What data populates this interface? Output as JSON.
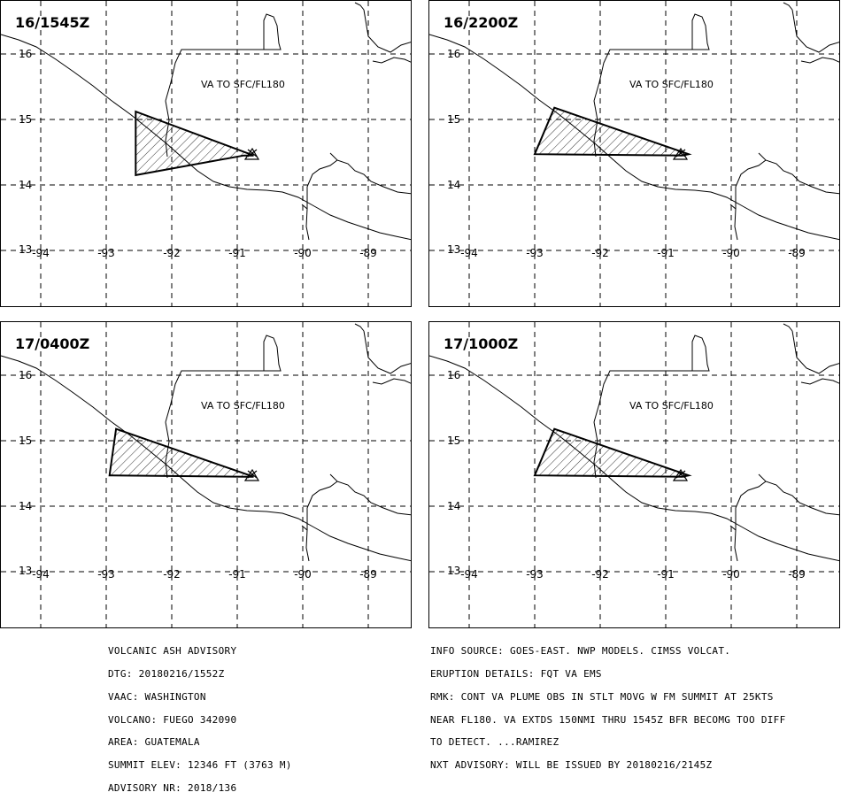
{
  "panels": [
    {
      "time": "16/1545Z",
      "va_text": "VA TO SFC/FL180",
      "polygon": [
        [
          -92.55,
          15.12
        ],
        [
          -90.75,
          14.45
        ],
        [
          -90.9,
          14.45
        ],
        [
          -92.55,
          14.15
        ]
      ]
    },
    {
      "time": "16/2200Z",
      "va_text": "VA TO SFC/FL180",
      "polygon": [
        [
          -92.7,
          15.18
        ],
        [
          -90.65,
          14.47
        ],
        [
          -90.75,
          14.45
        ],
        [
          -93.0,
          14.47
        ]
      ]
    },
    {
      "time": "17/0400Z",
      "va_text": "VA TO SFC/FL180",
      "polygon": [
        [
          -92.85,
          15.18
        ],
        [
          -90.75,
          14.45
        ],
        [
          -90.85,
          14.45
        ],
        [
          -92.95,
          14.47
        ]
      ]
    },
    {
      "time": "17/1000Z",
      "va_text": "VA TO SFC/FL180",
      "polygon": [
        [
          -92.7,
          15.18
        ],
        [
          -90.65,
          14.47
        ],
        [
          -90.75,
          14.45
        ],
        [
          -93.0,
          14.47
        ]
      ]
    }
  ],
  "map": {
    "lat_labels": [
      "16",
      "15",
      "14",
      "13"
    ],
    "lon_labels": [
      "-94",
      "-93",
      "-92",
      "-91",
      "-90",
      "-89"
    ],
    "volcano_marker": "triangle-volcano-icon"
  },
  "advisory_left": [
    "VOLCANIC ASH ADVISORY",
    "DTG: 20180216/1552Z",
    "VAAC: WASHINGTON",
    "VOLCANO: FUEGO 342090",
    "AREA: GUATEMALA",
    "SUMMIT ELEV: 12346 FT (3763 M)",
    "ADVISORY NR: 2018/136"
  ],
  "advisory_right": [
    "INFO SOURCE: GOES-EAST. NWP MODELS. CIMSS VOLCAT.",
    "ERUPTION DETAILS: FQT VA EMS",
    "RMK: CONT VA PLUME OBS IN STLT MOVG W FM SUMMIT AT 25KTS",
    "NEAR FL180. VA EXTDS 150NMI THRU 1545Z BFR BECOMG TOO DIFF",
    "TO DETECT. ...RAMIREZ",
    "NXT ADVISORY: WILL BE ISSUED BY 20180216/2145Z"
  ]
}
